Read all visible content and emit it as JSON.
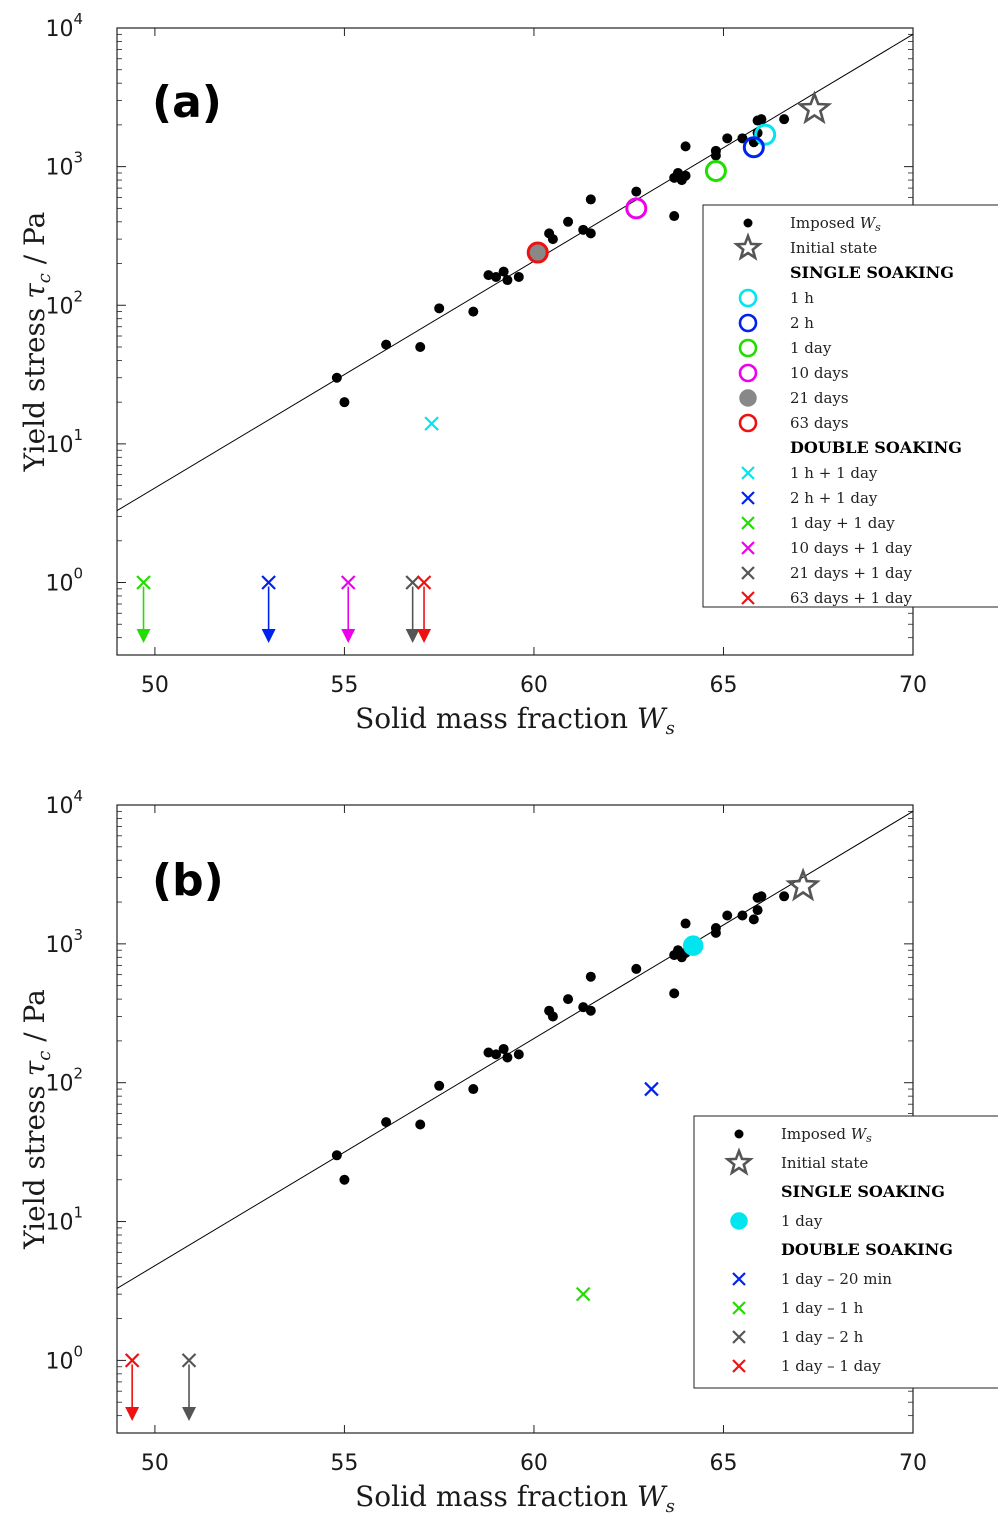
{
  "chart_data": [
    {
      "panel_label": "(a)",
      "type": "scatter",
      "xlabel_text": "Solid mass fraction ",
      "xlabel_var": "W",
      "xlabel_sub": "s",
      "ylabel_text": "Yield stress ",
      "ylabel_var": "τ",
      "ylabel_sub": "c",
      "ylabel_unit": "/  Pa",
      "xlim": [
        49,
        70
      ],
      "ylim": [
        0.3,
        10000
      ],
      "yscale": "log",
      "xticks": [
        "50",
        "55",
        "60",
        "65",
        "70"
      ],
      "yticks": [
        {
          "base": "10",
          "exp": "0"
        },
        {
          "base": "10",
          "exp": "1"
        },
        {
          "base": "10",
          "exp": "2"
        },
        {
          "base": "10",
          "exp": "3"
        },
        {
          "base": "10",
          "exp": "4"
        }
      ],
      "fit_line": [
        [
          49,
          3.3
        ],
        [
          70,
          9000
        ]
      ],
      "imposed_points": [
        [
          54.8,
          30
        ],
        [
          55.0,
          20
        ],
        [
          56.1,
          52
        ],
        [
          57.0,
          50
        ],
        [
          57.5,
          95
        ],
        [
          58.4,
          90
        ],
        [
          58.8,
          165
        ],
        [
          59.0,
          160
        ],
        [
          59.2,
          175
        ],
        [
          59.3,
          152
        ],
        [
          59.6,
          160
        ],
        [
          60.4,
          330
        ],
        [
          60.5,
          300
        ],
        [
          60.9,
          400
        ],
        [
          61.3,
          350
        ],
        [
          61.5,
          580
        ],
        [
          61.5,
          330
        ],
        [
          62.7,
          660
        ],
        [
          63.7,
          440
        ],
        [
          63.7,
          830
        ],
        [
          63.8,
          900
        ],
        [
          63.9,
          800
        ],
        [
          64.0,
          1400
        ],
        [
          64.0,
          860
        ],
        [
          64.8,
          1200
        ],
        [
          64.8,
          1300
        ],
        [
          65.1,
          1600
        ],
        [
          65.5,
          1600
        ],
        [
          65.8,
          1500
        ],
        [
          65.9,
          1750
        ],
        [
          65.9,
          2150
        ],
        [
          66.0,
          2200
        ],
        [
          66.6,
          2200
        ]
      ],
      "initial_state": [
        67.4,
        2600
      ],
      "single_soaking": [
        {
          "label": "1 h",
          "x": 66.1,
          "y": 1700,
          "color": "#00e5ee",
          "style": "ring"
        },
        {
          "label": "2 h",
          "x": 65.8,
          "y": 1380,
          "color": "#0022ee",
          "style": "ring"
        },
        {
          "label": "1 day",
          "x": 64.8,
          "y": 930,
          "color": "#22dd00",
          "style": "ring"
        },
        {
          "label": "10 days",
          "x": 62.7,
          "y": 500,
          "color": "#ee00ee",
          "style": "ring"
        },
        {
          "label": "21 days",
          "x": 60.1,
          "y": 240,
          "color": "#888888",
          "style": "filled"
        },
        {
          "label": "63 days",
          "x": 60.1,
          "y": 240,
          "color": "#ee1111",
          "style": "ring"
        }
      ],
      "double_soaking": [
        {
          "label": "1 h + 1 day",
          "x": 57.3,
          "y": 14,
          "color": "#00e5ee",
          "arrow": false
        },
        {
          "label": "2 h + 1 day",
          "x": 53.0,
          "y": 1,
          "color": "#0022ee",
          "arrow": true
        },
        {
          "label": "1 day + 1 day",
          "x": 49.7,
          "y": 1,
          "color": "#22dd00",
          "arrow": true
        },
        {
          "label": "10 days + 1 day",
          "x": 55.1,
          "y": 1,
          "color": "#ee00ee",
          "arrow": true
        },
        {
          "label": "21 days + 1 day",
          "x": 56.8,
          "y": 1,
          "color": "#555555",
          "arrow": true
        },
        {
          "label": "63 days + 1 day",
          "x": 57.1,
          "y": 1,
          "color": "#ee1111",
          "arrow": true
        }
      ],
      "legend": {
        "imposed": "Imposed ",
        "imposed_var": "W",
        "imposed_sub": "s",
        "initial": "Initial state",
        "single_header": "SINGLE SOAKING",
        "double_header": "DOUBLE SOAKING"
      }
    },
    {
      "panel_label": "(b)",
      "type": "scatter",
      "xlabel_text": "Solid mass fraction ",
      "xlabel_var": "W",
      "xlabel_sub": "s",
      "ylabel_text": "Yield stress ",
      "ylabel_var": "τ",
      "ylabel_sub": "c",
      "ylabel_unit": "/  Pa",
      "xlim": [
        49,
        70
      ],
      "ylim": [
        0.3,
        10000
      ],
      "yscale": "log",
      "xticks": [
        "50",
        "55",
        "60",
        "65",
        "70"
      ],
      "yticks": [
        {
          "base": "10",
          "exp": "0"
        },
        {
          "base": "10",
          "exp": "1"
        },
        {
          "base": "10",
          "exp": "2"
        },
        {
          "base": "10",
          "exp": "3"
        },
        {
          "base": "10",
          "exp": "4"
        }
      ],
      "fit_line": [
        [
          49,
          3.3
        ],
        [
          70,
          9000
        ]
      ],
      "imposed_points": [
        [
          54.8,
          30
        ],
        [
          55.0,
          20
        ],
        [
          56.1,
          52
        ],
        [
          57.0,
          50
        ],
        [
          57.5,
          95
        ],
        [
          58.4,
          90
        ],
        [
          58.8,
          165
        ],
        [
          59.0,
          160
        ],
        [
          59.2,
          175
        ],
        [
          59.3,
          152
        ],
        [
          59.6,
          160
        ],
        [
          60.4,
          330
        ],
        [
          60.5,
          300
        ],
        [
          60.9,
          400
        ],
        [
          61.3,
          350
        ],
        [
          61.5,
          580
        ],
        [
          61.5,
          330
        ],
        [
          62.7,
          660
        ],
        [
          63.7,
          440
        ],
        [
          63.7,
          830
        ],
        [
          63.8,
          900
        ],
        [
          63.9,
          800
        ],
        [
          64.0,
          1400
        ],
        [
          64.0,
          860
        ],
        [
          64.8,
          1200
        ],
        [
          64.8,
          1300
        ],
        [
          65.1,
          1600
        ],
        [
          65.5,
          1600
        ],
        [
          65.8,
          1500
        ],
        [
          65.9,
          1750
        ],
        [
          65.9,
          2150
        ],
        [
          66.0,
          2200
        ],
        [
          66.6,
          2200
        ]
      ],
      "initial_state": [
        67.1,
        2600
      ],
      "single_soaking": [
        {
          "label": "1 day",
          "x": 64.2,
          "y": 970,
          "color": "#00e5ee",
          "style": "filled"
        }
      ],
      "double_soaking": [
        {
          "label": "1 day – 20 min",
          "x": 63.1,
          "y": 90,
          "color": "#0022ee",
          "arrow": false
        },
        {
          "label": "1 day – 1 h",
          "x": 61.3,
          "y": 3,
          "color": "#22dd00",
          "arrow": false
        },
        {
          "label": "1 day – 2 h",
          "x": 50.9,
          "y": 1,
          "color": "#555555",
          "arrow": true
        },
        {
          "label": "1 day – 1 day",
          "x": 49.4,
          "y": 1,
          "color": "#ee1111",
          "arrow": true
        }
      ],
      "legend": {
        "imposed": "Imposed ",
        "imposed_var": "W",
        "imposed_sub": "s",
        "initial": "Initial state",
        "single_header": "SINGLE SOAKING",
        "double_header": "DOUBLE SOAKING"
      }
    }
  ]
}
